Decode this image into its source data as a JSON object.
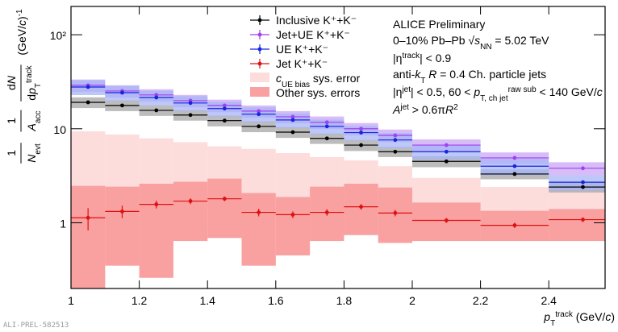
{
  "chart_data": {
    "type": "errorbar",
    "footer": "ALI-PREL-582513",
    "x_label": [
      {
        "text": "p",
        "style": "italic"
      },
      {
        "text": "T",
        "style": "sub"
      },
      {
        "text": "track",
        "style": "sup"
      },
      {
        "text": " (GeV/"
      },
      {
        "text": "c",
        "style": "italic"
      },
      {
        "text": ")"
      }
    ],
    "y_label": {
      "fractions": [
        {
          "num": [
            {
              "text": "1"
            }
          ],
          "den": [
            {
              "text": "N",
              "style": "italic"
            },
            {
              "text": "evt",
              "style": "sub"
            }
          ]
        },
        {
          "num": [
            {
              "text": "1"
            }
          ],
          "den": [
            {
              "text": "A",
              "style": "italic"
            },
            {
              "text": "acc",
              "style": "sub"
            }
          ]
        },
        {
          "num": [
            {
              "text": "d"
            },
            {
              "text": "N",
              "style": "italic"
            }
          ],
          "den": [
            {
              "text": "d"
            },
            {
              "text": "p",
              "style": "italic"
            },
            {
              "text": "T",
              "style": "sub"
            },
            {
              "text": "track",
              "style": "sup"
            }
          ]
        }
      ],
      "unit": [
        {
          "text": "(GeV/"
        },
        {
          "text": "c",
          "style": "italic"
        },
        {
          "text": ")"
        },
        {
          "text": "-1",
          "style": "sup"
        }
      ]
    },
    "annotations": [
      [
        {
          "text": "ALICE Preliminary"
        }
      ],
      [
        {
          "text": "0–10% Pb–Pb √"
        },
        {
          "text": "s",
          "style": "italic"
        },
        {
          "text": "NN",
          "style": "sub"
        },
        {
          "text": " = 5.02 TeV"
        }
      ],
      [
        {
          "text": "|η"
        },
        {
          "text": "track",
          "style": "sup"
        },
        {
          "text": "| < 0.9"
        }
      ],
      [
        {
          "text": "anti-"
        },
        {
          "text": "k",
          "style": "italic"
        },
        {
          "text": "T",
          "style": "sub"
        },
        {
          "text": " R",
          "style": "italic"
        },
        {
          "text": " = 0.4 Ch. particle jets"
        }
      ],
      [
        {
          "text": "|η"
        },
        {
          "text": "jet",
          "style": "sup"
        },
        {
          "text": "| < 0.5, 60 < "
        },
        {
          "text": "p",
          "style": "italic"
        },
        {
          "text": "T, ch jet",
          "style": "sub"
        },
        {
          "text": "raw sub",
          "style": "sup"
        },
        {
          "text": " < 140 GeV/"
        },
        {
          "text": "c",
          "style": "italic"
        }
      ],
      [
        {
          "text": "A",
          "style": "italic"
        },
        {
          "text": "jet",
          "style": "sup"
        },
        {
          "text": " > 0.6π"
        },
        {
          "text": "R",
          "style": "italic"
        },
        {
          "text": "2",
          "style": "sup"
        }
      ]
    ],
    "xlim": [
      1,
      2.565
    ],
    "ylim": [
      0.2,
      200
    ],
    "log_y": true,
    "xticks": [
      1,
      1.2,
      1.4,
      1.6,
      1.8,
      2,
      2.2,
      2.4
    ],
    "yticks": [
      1,
      10,
      {
        "value": 100,
        "label": "10²"
      }
    ],
    "bins": [
      1,
      1.1,
      1.2,
      1.3,
      1.4,
      1.5,
      1.6,
      1.7,
      1.8,
      1.9,
      2,
      2.2,
      2.4,
      2.6
    ],
    "x": [
      1.05,
      1.15,
      1.25,
      1.35,
      1.45,
      1.55,
      1.65,
      1.75,
      1.85,
      1.95,
      2.1,
      2.3,
      2.5
    ],
    "bands": [
      {
        "name": [
          {
            "text": "c",
            "style": "italic"
          },
          {
            "text": "UE bias",
            "style": "sub"
          },
          {
            "text": " sys. error"
          }
        ],
        "color": "#fddcdc",
        "low": [
          0.2,
          0.35,
          0.26,
          0.64,
          0.69,
          0.35,
          0.45,
          0.64,
          0.74,
          0.61,
          0.64,
          0.64,
          0.64
        ],
        "high": [
          9.4,
          8.7,
          7.9,
          7.2,
          6.5,
          6.1,
          5.5,
          5.0,
          4.6,
          4.0,
          3.0,
          2.4,
          2.25
        ]
      },
      {
        "name": [
          {
            "text": "Other sys. errors"
          }
        ],
        "color": "#f9a0a0",
        "low": [
          0.2,
          0.35,
          0.26,
          0.64,
          0.69,
          0.35,
          0.45,
          0.64,
          0.74,
          0.61,
          0.64,
          0.64,
          0.64
        ],
        "high": [
          2.47,
          2.42,
          2.6,
          2.73,
          2.95,
          2.07,
          1.88,
          2.42,
          2.6,
          2.37,
          1.64,
          1.34,
          1.4
        ]
      }
    ],
    "series": [
      {
        "name": "Inclusive K⁺+K⁻",
        "color": "#000000",
        "band_color": "#a6a6a6",
        "values": [
          19.1,
          17.7,
          15.7,
          14.0,
          12.2,
          10.6,
          9.2,
          7.9,
          6.7,
          5.7,
          4.5,
          3.3,
          2.4
        ],
        "sys": [
          2.5,
          2.3,
          2.0,
          1.8,
          1.6,
          1.4,
          1.2,
          1.0,
          0.9,
          0.7,
          0.6,
          0.4,
          0.3
        ]
      },
      {
        "name": "Jet+UE K⁺+K⁻",
        "color": "#a040f0",
        "band_color": "#c9a6f5",
        "values": [
          29,
          25.2,
          22.9,
          19.9,
          17.7,
          15.4,
          13.4,
          11.7,
          10,
          8.5,
          6.7,
          4.9,
          3.8
        ],
        "sys": [
          4.4,
          3.8,
          3.4,
          3.0,
          2.7,
          2.3,
          2.0,
          1.8,
          1.5,
          1.3,
          1.0,
          0.7,
          0.6
        ]
      },
      {
        "name": "UE K⁺+K⁻",
        "color": "#1424e0",
        "band_color": "#a8b6f5",
        "values": [
          27.8,
          24.2,
          21.5,
          18.8,
          16.4,
          14.3,
          12.4,
          10.6,
          9.1,
          7.6,
          5.7,
          4.0,
          2.7
        ],
        "sys": [
          5.0,
          4.4,
          3.9,
          3.4,
          3.0,
          2.6,
          2.2,
          1.9,
          1.6,
          1.4,
          1.0,
          0.8,
          0.5
        ]
      },
      {
        "name": "Jet K⁺+K⁻",
        "color": "#e01010",
        "values": [
          1.13,
          1.32,
          1.57,
          1.7,
          1.8,
          1.29,
          1.22,
          1.29,
          1.48,
          1.27,
          1.06,
          0.94,
          1.08
        ],
        "errors": [
          0.3,
          0.2,
          0.15,
          0.12,
          0.1,
          0.12,
          0.1,
          0.1,
          0.1,
          0.1,
          0.06,
          0.06,
          0.06
        ]
      }
    ]
  }
}
